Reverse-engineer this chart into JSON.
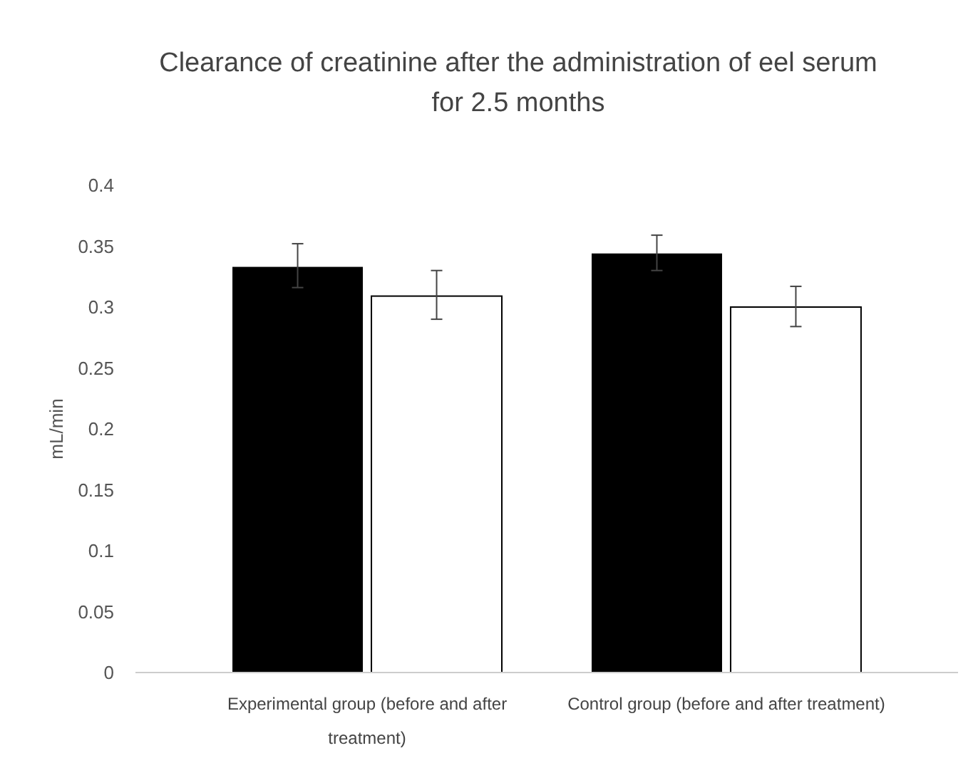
{
  "chart_data": {
    "type": "bar",
    "title": "Clearance of creatinine after the administration of eel serum for 2.5 months",
    "ylabel": "mL/min",
    "categories": [
      "Experimental group (before and after treatment)",
      "Control group (before and after treatment)"
    ],
    "series": [
      {
        "color": "#000000",
        "values": [
          0.333,
          0.344
        ],
        "errors": [
          [
            0.316,
            0.352
          ],
          [
            0.33,
            0.359
          ]
        ]
      },
      {
        "color": "#ffffff",
        "values": [
          0.309,
          0.3
        ],
        "errors": [
          [
            0.29,
            0.33
          ],
          [
            0.284,
            0.317
          ]
        ]
      }
    ],
    "ylim": [
      0,
      0.4
    ],
    "yticks": [
      0,
      0.05,
      0.1,
      0.15,
      0.2,
      0.25,
      0.3,
      0.35,
      0.4
    ],
    "grid": false
  }
}
